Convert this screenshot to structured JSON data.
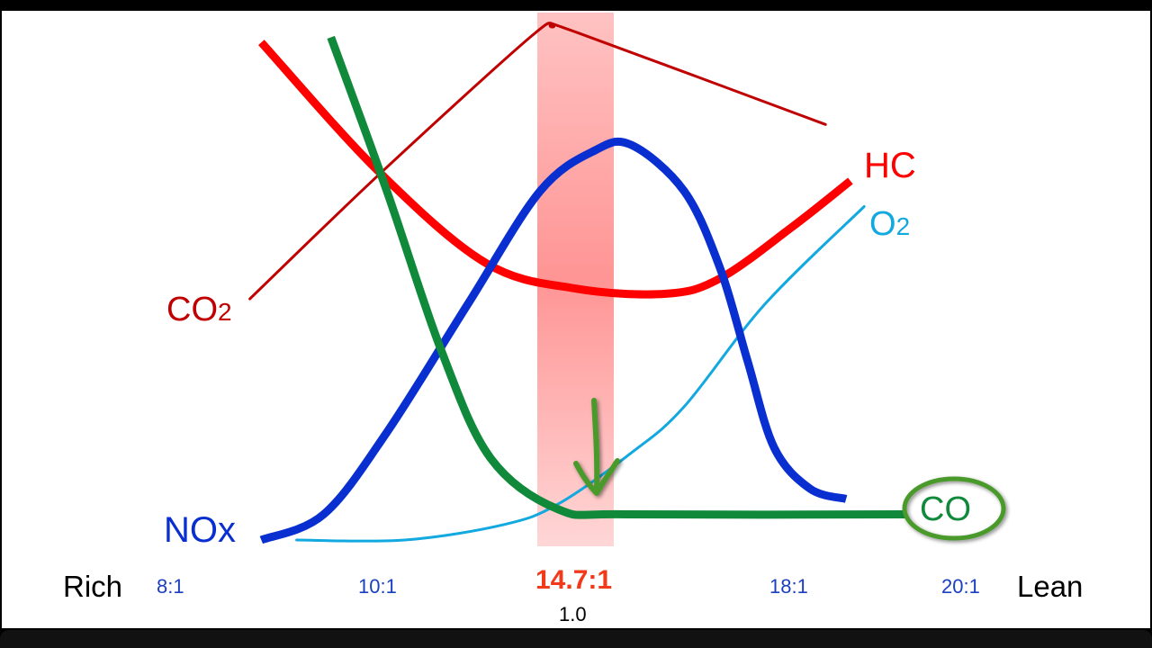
{
  "chart_data": {
    "type": "line",
    "x_ticks": [
      "8:1",
      "10:1",
      "14.7:1",
      "18:1",
      "20:1"
    ],
    "x_tick_values": [
      8,
      10,
      14.7,
      18,
      20
    ],
    "stoich_label": "14.7:1",
    "lambda_label": "1.0",
    "x_left_label": "Rich",
    "x_right_label": "Lean",
    "highlight_band": {
      "center": 14.7,
      "color": "#ff6b6b"
    },
    "y_axis_shown": false,
    "series": [
      {
        "name": "CO2",
        "label_main": "CO",
        "label_sub": "2",
        "color": "#c00000",
        "width": "thin",
        "points": [
          [
            8.75,
            47
          ],
          [
            9.98,
            71
          ],
          [
            13.6,
            98
          ],
          [
            14.14,
            100
          ],
          [
            14.7,
            99
          ],
          [
            18.4,
            81
          ]
        ]
      },
      {
        "name": "HC",
        "label_main": "HC",
        "label_sub": "",
        "color": "#ff0000",
        "width": "thick",
        "points": [
          [
            8.86,
            97
          ],
          [
            9.98,
            72
          ],
          [
            12.54,
            54
          ],
          [
            14.7,
            49
          ],
          [
            16.08,
            48
          ],
          [
            16.91,
            51
          ],
          [
            18.01,
            61
          ],
          [
            18.69,
            70
          ]
        ]
      },
      {
        "name": "CO",
        "label_main": "CO",
        "label_sub": "",
        "color": "#108a3a",
        "width": "thick",
        "points": [
          [
            9.53,
            98
          ],
          [
            10.17,
            68
          ],
          [
            11.47,
            37
          ],
          [
            12.65,
            16
          ],
          [
            14.27,
            6
          ],
          [
            15.5,
            5
          ],
          [
            19.33,
            5
          ]
        ]
      },
      {
        "name": "NOx",
        "label_main": "NOx",
        "label_sub": "",
        "color": "#0a2fd0",
        "width": "thick",
        "points": [
          [
            8.86,
            0
          ],
          [
            9.46,
            5
          ],
          [
            10.17,
            21
          ],
          [
            12.11,
            46
          ],
          [
            13.84,
            68
          ],
          [
            15.0,
            76
          ],
          [
            15.55,
            77
          ],
          [
            16.36,
            68
          ],
          [
            16.91,
            53
          ],
          [
            17.33,
            35
          ],
          [
            17.74,
            18
          ],
          [
            18.22,
            10
          ],
          [
            18.64,
            8
          ]
        ]
      },
      {
        "name": "O2",
        "label_main": "O",
        "label_sub": "2",
        "color": "#12a8e0",
        "width": "thin",
        "points": [
          [
            9.2,
            0
          ],
          [
            10.6,
            0
          ],
          [
            12.97,
            3
          ],
          [
            14.27,
            7
          ],
          [
            15.55,
            17
          ],
          [
            16.36,
            26
          ],
          [
            17.6,
            46
          ],
          [
            18.85,
            65
          ]
        ]
      }
    ],
    "annotations": [
      {
        "type": "hand-drawn-arrow",
        "target": 14.7,
        "color": "#4a9a2a"
      },
      {
        "type": "hand-drawn-circle",
        "around": "CO",
        "color": "#4a9a2a"
      }
    ]
  }
}
